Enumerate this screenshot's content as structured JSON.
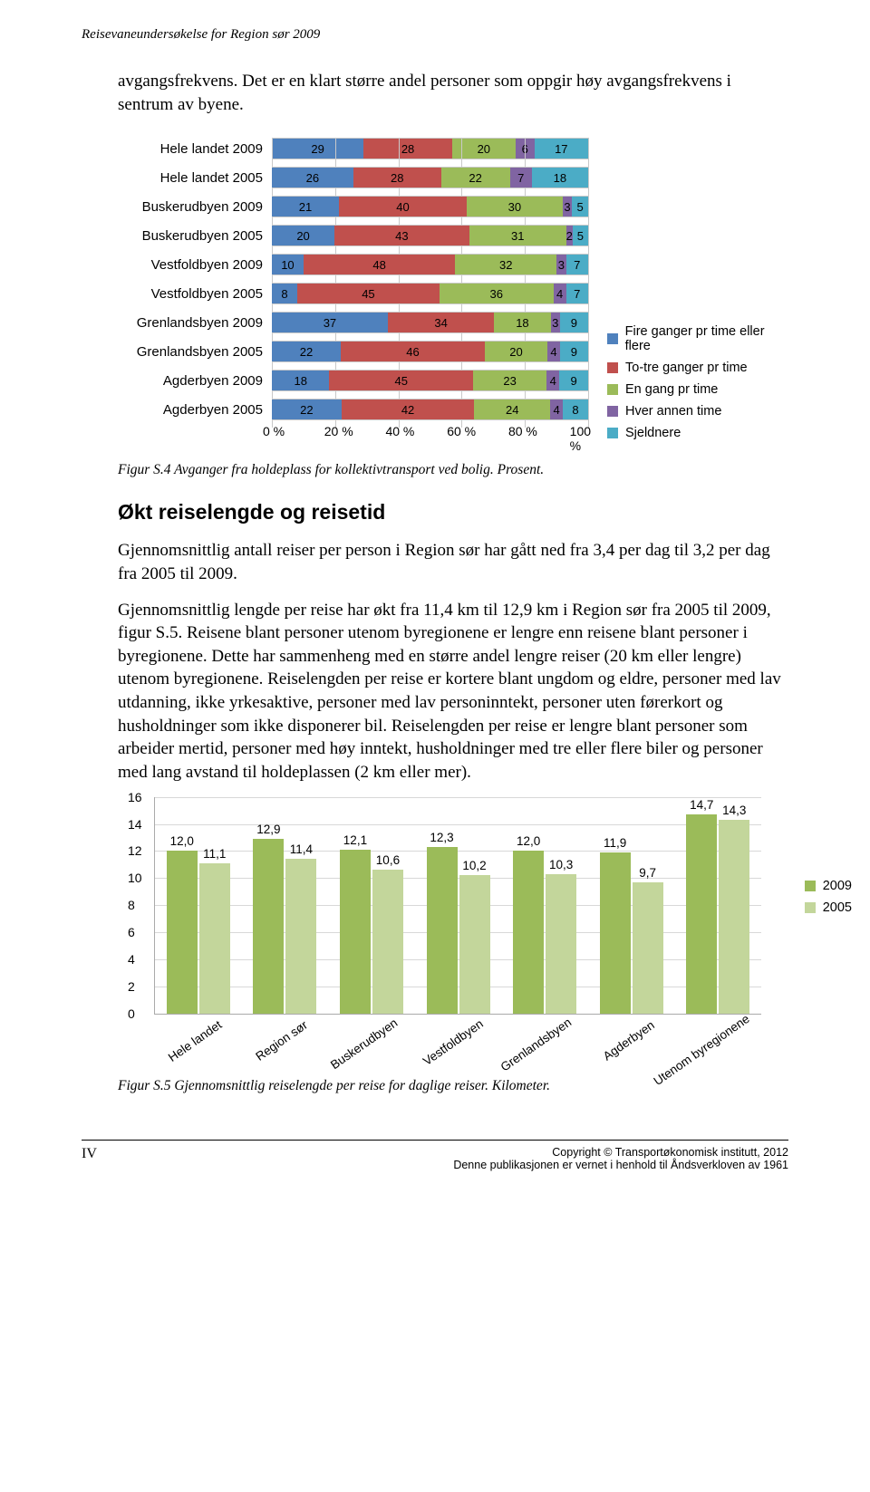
{
  "doc_header": "Reisevaneundersøkelse for Region sør 2009",
  "intro": "avgangsfrekvens. Det er en klart større andel personer som oppgir høy avgangsfrekvens i sentrum av byene.",
  "hbar": {
    "type": "stacked-horizontal-bar",
    "categories": [
      "Hele landet 2009",
      "Hele landet 2005",
      "Buskerudbyen 2009",
      "Buskerudbyen 2005",
      "Vestfoldbyen 2009",
      "Vestfoldbyen 2005",
      "Grenlandsbyen 2009",
      "Grenlandsbyen 2005",
      "Agderbyen 2009",
      "Agderbyen 2005"
    ],
    "series": [
      "Fire ganger pr time eller flere",
      "To-tre ganger pr time",
      "En gang pr time",
      "Hver annen time",
      "Sjeldnere"
    ],
    "colors": [
      "#4f81bd",
      "#c0504d",
      "#9bbb59",
      "#8064a2",
      "#4bacc6"
    ],
    "data": [
      [
        29,
        28,
        20,
        6,
        17
      ],
      [
        26,
        28,
        22,
        7,
        18
      ],
      [
        21,
        40,
        30,
        3,
        5
      ],
      [
        20,
        43,
        31,
        2,
        5
      ],
      [
        10,
        48,
        32,
        3,
        7
      ],
      [
        8,
        45,
        36,
        4,
        7
      ],
      [
        37,
        34,
        18,
        3,
        9
      ],
      [
        22,
        46,
        20,
        4,
        9
      ],
      [
        18,
        45,
        23,
        4,
        9
      ],
      [
        22,
        42,
        24,
        4,
        8
      ]
    ],
    "xticks": [
      "0 %",
      "20 %",
      "40 %",
      "60 %",
      "80 %",
      "100 %"
    ],
    "grid_color": "#c9c9c9"
  },
  "figcap1": "Figur S.4 Avganger fra holdeplass for kollektivtransport ved bolig. Prosent.",
  "h2": "Økt reiselengde og reisetid",
  "p1": "Gjennomsnittlig antall reiser per person i Region sør har gått ned fra 3,4 per dag til 3,2 per dag fra 2005 til 2009.",
  "p2": "Gjennomsnittlig lengde per reise har økt fra 11,4 km til 12,9 km i Region sør fra 2005 til 2009, figur S.5. Reisene blant personer utenom byregionene er lengre enn reisene blant personer i byregionene. Dette har sammenheng med en større andel lengre reiser (20 km eller lengre) utenom byregionene. Reiselengden per reise er kortere blant ungdom og eldre, personer med lav utdanning, ikke yrkesaktive, personer med lav personinntekt, personer uten førerkort og husholdninger som ikke disponerer bil. Reiselengden per reise er lengre blant personer som arbeider mertid, personer med høy inntekt, husholdninger med tre eller flere biler og personer med lang avstand til holdeplassen (2 km eller mer).",
  "vchart": {
    "type": "grouped-vertical-bar",
    "ymax": 16,
    "ytick_step": 2,
    "categories": [
      "Hele landet",
      "Region sør",
      "Buskerudbyen",
      "Vestfoldbyen",
      "Grenlandsbyen",
      "Agderbyen",
      "Utenom byregionene"
    ],
    "series": [
      "2009",
      "2005"
    ],
    "colors": [
      "#9bbb59",
      "#c3d69b"
    ],
    "values_2009": [
      12.0,
      12.9,
      12.1,
      12.3,
      12.0,
      11.9,
      14.7
    ],
    "values_2005": [
      11.1,
      11.4,
      10.6,
      10.2,
      10.3,
      9.7,
      14.3
    ],
    "labels_2009": [
      "12,0",
      "12,9",
      "12,1",
      "12,3",
      "12,0",
      "11,9",
      "14,7"
    ],
    "labels_2005": [
      "11,1",
      "11,4",
      "10,6",
      "10,2",
      "10,3",
      "9,7",
      "14,3"
    ],
    "grid_color": "#d8d8d8"
  },
  "figcap2": "Figur S.5 Gjennomsnittlig reiselengde per reise for daglige reiser. Kilometer.",
  "footer": {
    "page": "IV",
    "copyright": "Copyright © Transportøkonomisk institutt, 2012",
    "notice": "Denne publikasjonen er vernet i henhold til Åndsverkloven av 1961"
  }
}
